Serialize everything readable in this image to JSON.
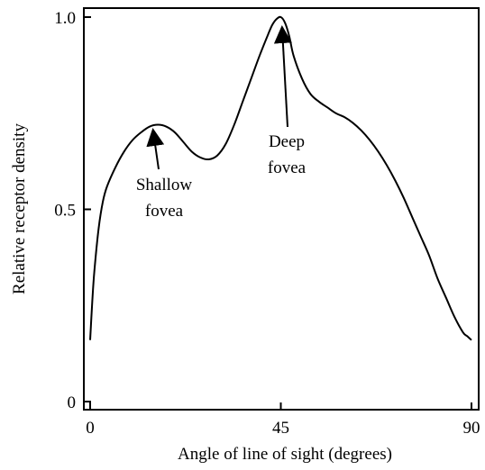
{
  "chart_data": {
    "type": "line",
    "xlabel": "Angle of line of sight (degrees)",
    "ylabel": "Relative receptor density",
    "xlim": [
      0,
      90
    ],
    "ylim": [
      0,
      1.0
    ],
    "x_ticks": [
      {
        "value": 0,
        "label": "0"
      },
      {
        "value": 45,
        "label": "45"
      },
      {
        "value": 90,
        "label": "90"
      }
    ],
    "y_ticks": [
      {
        "value": 0,
        "label": "0"
      },
      {
        "value": 0.5,
        "label": "0.5"
      },
      {
        "value": 1.0,
        "label": "1.0"
      }
    ],
    "grid": false,
    "series": [
      {
        "x": [
          0,
          0.5,
          1,
          2,
          3,
          4,
          6,
          8,
          10,
          12,
          14,
          16,
          18,
          20,
          22,
          24,
          26,
          28,
          30,
          32,
          34,
          36,
          38,
          40,
          42,
          43,
          44,
          45,
          46,
          47,
          48,
          50,
          52,
          54,
          56,
          58,
          60,
          62,
          64,
          66,
          68,
          70,
          72,
          74,
          76,
          78,
          80,
          82,
          84,
          86,
          88,
          89,
          90
        ],
        "y": [
          0.16,
          0.26,
          0.34,
          0.45,
          0.52,
          0.56,
          0.61,
          0.65,
          0.68,
          0.7,
          0.715,
          0.72,
          0.715,
          0.7,
          0.675,
          0.65,
          0.635,
          0.63,
          0.64,
          0.67,
          0.72,
          0.78,
          0.84,
          0.9,
          0.955,
          0.98,
          0.995,
          1.0,
          0.985,
          0.95,
          0.9,
          0.84,
          0.8,
          0.78,
          0.765,
          0.75,
          0.74,
          0.725,
          0.705,
          0.68,
          0.65,
          0.615,
          0.575,
          0.53,
          0.48,
          0.43,
          0.38,
          0.32,
          0.27,
          0.22,
          0.18,
          0.17,
          0.16
        ]
      }
    ],
    "annotations": [
      {
        "text_lines": [
          "Shallow",
          "fovea"
        ],
        "target_x": 16,
        "target_y": 0.72
      },
      {
        "text_lines": [
          "Deep",
          "fovea"
        ],
        "target_x": 45,
        "target_y": 1.0
      }
    ]
  }
}
